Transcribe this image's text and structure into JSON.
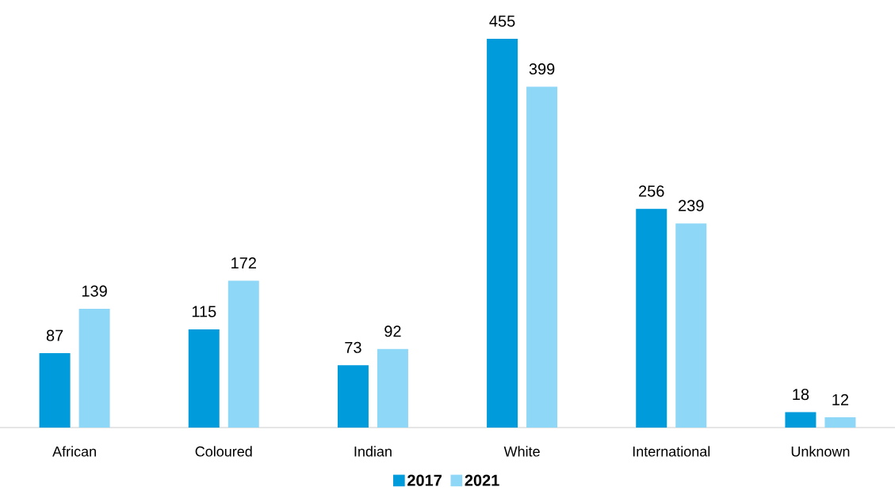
{
  "chart_data": {
    "type": "bar",
    "categories": [
      "African",
      "Coloured",
      "Indian",
      "White",
      "International",
      "Unknown"
    ],
    "series": [
      {
        "name": "2017",
        "color": "#009bdb",
        "values": [
          87,
          115,
          73,
          455,
          256,
          18
        ]
      },
      {
        "name": "2021",
        "color": "#8fd7f6",
        "values": [
          139,
          172,
          92,
          399,
          239,
          12
        ]
      }
    ],
    "data_labels": true,
    "legend": "bottom"
  }
}
